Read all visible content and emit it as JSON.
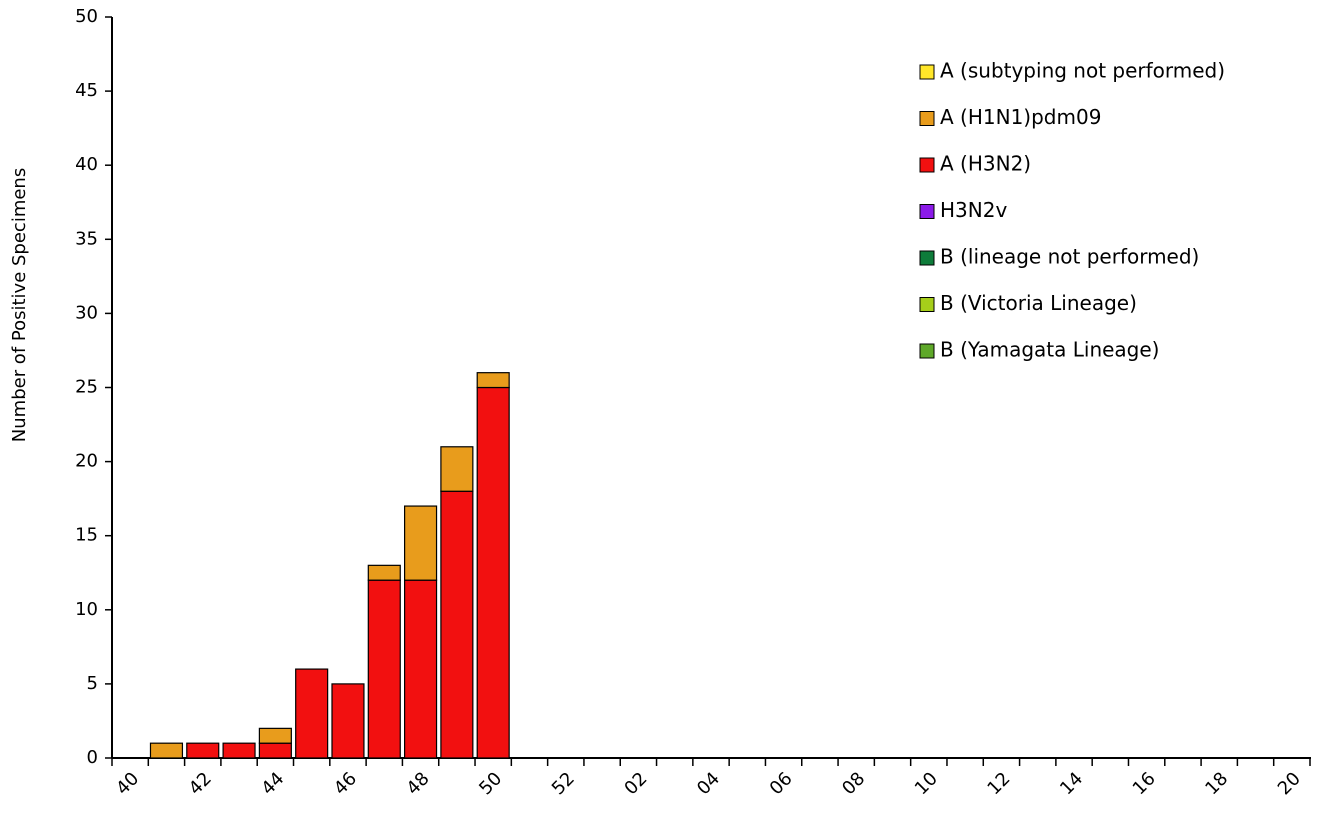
{
  "chart_data": {
    "type": "stacked_bar",
    "y_label": "Number of Positive Specimens",
    "categories": [
      "40",
      null,
      "42",
      null,
      "44",
      null,
      "46",
      null,
      "48",
      null,
      "50",
      null,
      "52",
      null,
      "02",
      null,
      "04",
      null,
      "06",
      null,
      "08",
      null,
      "10",
      null,
      "12",
      null,
      "14",
      null,
      "16",
      null,
      "18",
      null,
      "20"
    ],
    "series": [
      {
        "name": "A (subtyping not performed)",
        "color": "#ffe629",
        "values": [
          0,
          0,
          0,
          0,
          0,
          0,
          0,
          0,
          0,
          0,
          0,
          0,
          0,
          0,
          0,
          0,
          0,
          0,
          0,
          0,
          0,
          0,
          0,
          0,
          0,
          0,
          0,
          0,
          0,
          0,
          0,
          0,
          0
        ]
      },
      {
        "name": "A (H1N1)pdm09",
        "color": "#e89c1c",
        "values": [
          0,
          1,
          0,
          0,
          1,
          0,
          0,
          1,
          5,
          3,
          1,
          0,
          0,
          0,
          0,
          0,
          0,
          0,
          0,
          0,
          0,
          0,
          0,
          0,
          0,
          0,
          0,
          0,
          0,
          0,
          0,
          0,
          0
        ]
      },
      {
        "name": "A (H3N2)",
        "color": "#f21010",
        "values": [
          0,
          0,
          1,
          1,
          1,
          6,
          5,
          12,
          12,
          18,
          25,
          0,
          0,
          0,
          0,
          0,
          0,
          0,
          0,
          0,
          0,
          0,
          0,
          0,
          0,
          0,
          0,
          0,
          0,
          0,
          0,
          0,
          0
        ]
      },
      {
        "name": "H3N2v",
        "color": "#8b1ae8",
        "values": [
          0,
          0,
          0,
          0,
          0,
          0,
          0,
          0,
          0,
          0,
          0,
          0,
          0,
          0,
          0,
          0,
          0,
          0,
          0,
          0,
          0,
          0,
          0,
          0,
          0,
          0,
          0,
          0,
          0,
          0,
          0,
          0,
          0
        ]
      },
      {
        "name": "B (lineage not performed)",
        "color": "#0e7c3a",
        "values": [
          0,
          0,
          0,
          0,
          0,
          0,
          0,
          0,
          0,
          0,
          0,
          0,
          0,
          0,
          0,
          0,
          0,
          0,
          0,
          0,
          0,
          0,
          0,
          0,
          0,
          0,
          0,
          0,
          0,
          0,
          0,
          0,
          0
        ]
      },
      {
        "name": "B (Victoria Lineage)",
        "color": "#a6ce1a",
        "values": [
          0,
          0,
          0,
          0,
          0,
          0,
          0,
          0,
          0,
          0,
          0,
          0,
          0,
          0,
          0,
          0,
          0,
          0,
          0,
          0,
          0,
          0,
          0,
          0,
          0,
          0,
          0,
          0,
          0,
          0,
          0,
          0,
          0
        ]
      },
      {
        "name": "B (Yamagata Lineage)",
        "color": "#5ea829",
        "values": [
          0,
          0,
          0,
          0,
          0,
          0,
          0,
          0,
          0,
          0,
          0,
          0,
          0,
          0,
          0,
          0,
          0,
          0,
          0,
          0,
          0,
          0,
          0,
          0,
          0,
          0,
          0,
          0,
          0,
          0,
          0,
          0,
          0
        ]
      }
    ],
    "ylim": [
      0,
      50
    ],
    "yticks": [
      0,
      5,
      10,
      15,
      20,
      25,
      30,
      35,
      40,
      45,
      50
    ],
    "grid": false,
    "legend": "top-right"
  }
}
